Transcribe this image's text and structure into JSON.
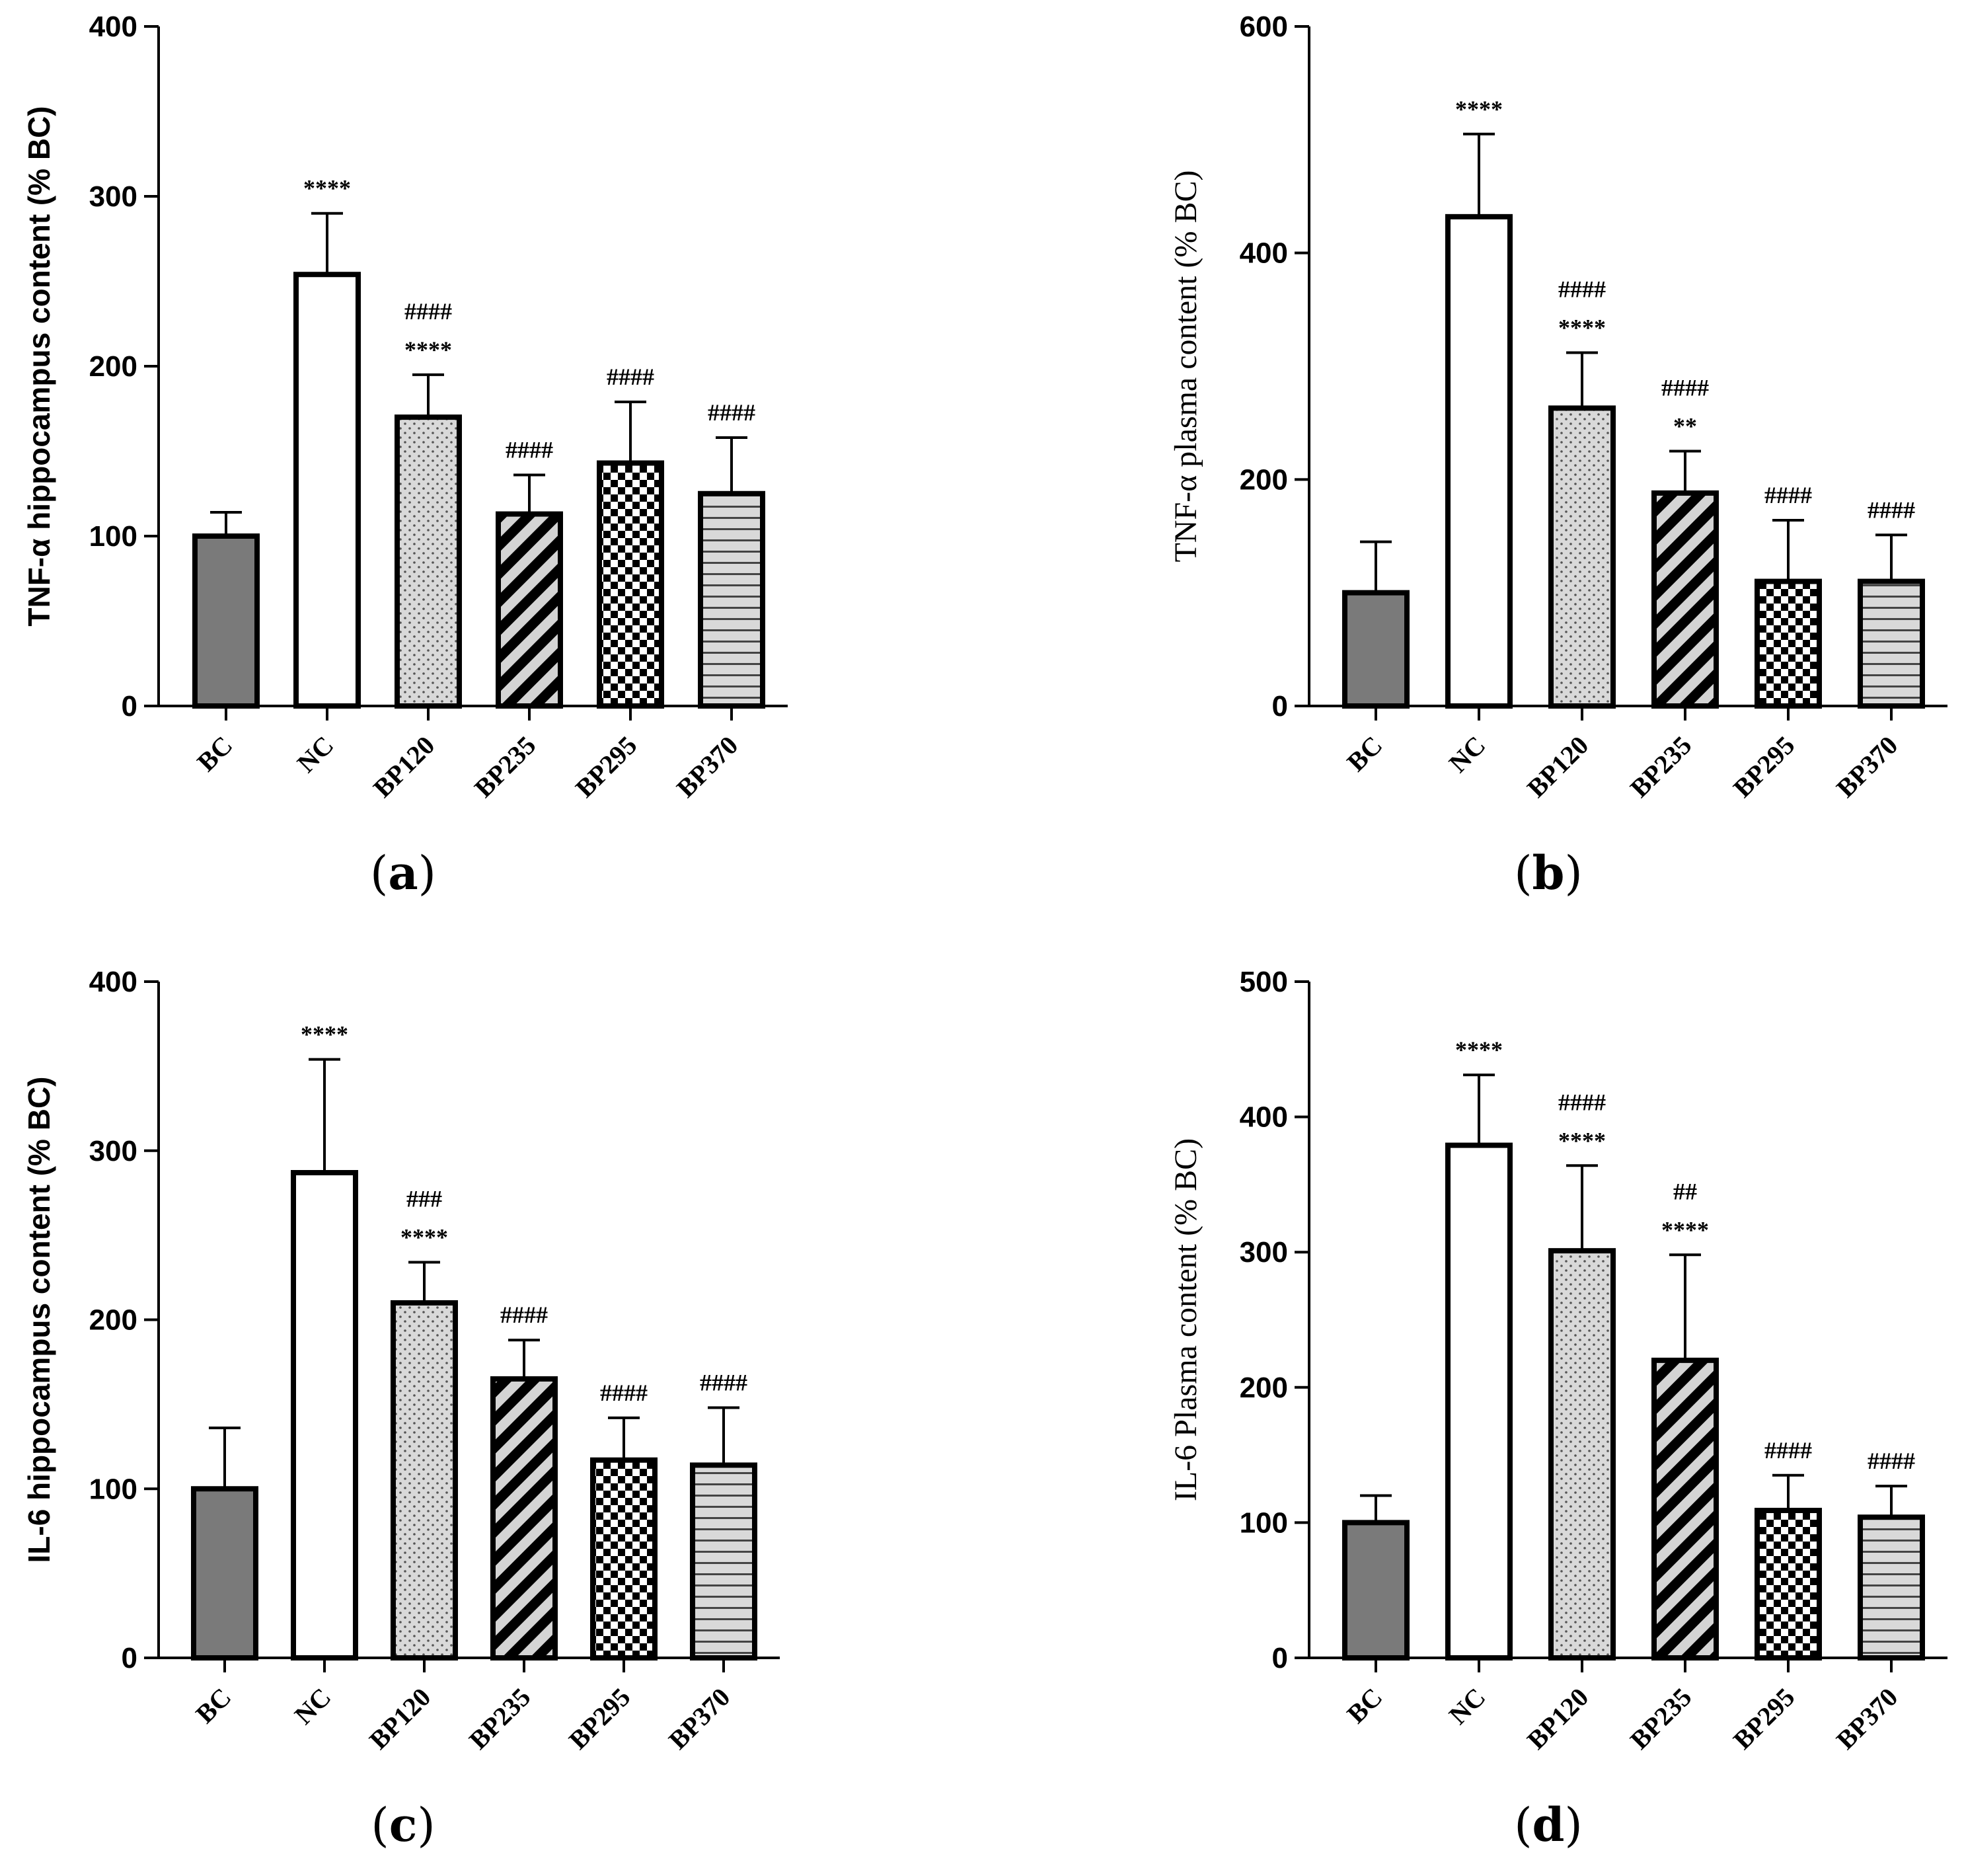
{
  "figure": {
    "panels": [
      {
        "id": "a",
        "label_open": "(",
        "label_letter": "a",
        "label_close": ")",
        "ylabel_font": "sans",
        "chart_key": 0
      },
      {
        "id": "b",
        "label_open": "(",
        "label_letter": "b",
        "label_close": ")",
        "ylabel_font": "serif",
        "chart_key": 1
      },
      {
        "id": "c",
        "label_open": "(",
        "label_letter": "c",
        "label_close": ")",
        "ylabel_font": "sans",
        "chart_key": 2
      },
      {
        "id": "d",
        "label_open": "(",
        "label_letter": "d",
        "label_close": ")",
        "ylabel_font": "serif",
        "chart_key": 3
      }
    ]
  },
  "chart_data": [
    {
      "type": "bar",
      "title": "",
      "xlabel": "",
      "ylabel": "TNF-α  hippocampus content (% BC)",
      "ylim": [
        0,
        400
      ],
      "yticks": [
        0,
        100,
        200,
        300,
        400
      ],
      "categories": [
        "BC",
        "NC",
        "BP120",
        "BP235",
        "BP295",
        "BP370"
      ],
      "values": [
        100,
        254,
        170,
        113,
        143,
        125
      ],
      "errors": [
        14,
        36,
        25,
        23,
        36,
        33
      ],
      "patterns": [
        "solid-gray",
        "white",
        "dots",
        "diagonal",
        "checker",
        "horizontal"
      ],
      "annotations": [
        [],
        [
          "****"
        ],
        [
          "####",
          "****"
        ],
        [
          "####"
        ],
        [
          "####"
        ],
        [
          "####"
        ]
      ]
    },
    {
      "type": "bar",
      "title": "",
      "xlabel": "",
      "ylabel": "TNF-α plasma content (% BC)",
      "ylim": [
        0,
        600
      ],
      "yticks": [
        0,
        200,
        400,
        600
      ],
      "categories": [
        "BC",
        "NC",
        "BP120",
        "BP235",
        "BP295",
        "BP370"
      ],
      "values": [
        100,
        432,
        263,
        188,
        110,
        110
      ],
      "errors": [
        45,
        73,
        49,
        37,
        54,
        41
      ],
      "patterns": [
        "solid-gray",
        "white",
        "dots",
        "diagonal",
        "checker",
        "horizontal"
      ],
      "annotations": [
        [],
        [
          "****"
        ],
        [
          "####",
          "****"
        ],
        [
          "####",
          "**"
        ],
        [
          "####"
        ],
        [
          "####"
        ]
      ]
    },
    {
      "type": "bar",
      "title": "",
      "xlabel": "",
      "ylabel": "IL-6 hippocampus content (%  BC)",
      "ylim": [
        0,
        400
      ],
      "yticks": [
        0,
        100,
        200,
        300,
        400
      ],
      "categories": [
        "BC",
        "NC",
        "BP120",
        "BP235",
        "BP295",
        "BP370"
      ],
      "values": [
        100,
        287,
        210,
        165,
        117,
        114
      ],
      "errors": [
        36,
        67,
        24,
        23,
        25,
        34
      ],
      "patterns": [
        "solid-gray",
        "white",
        "dots",
        "diagonal",
        "checker",
        "horizontal"
      ],
      "annotations": [
        [],
        [
          "****"
        ],
        [
          "###",
          "****"
        ],
        [
          "####"
        ],
        [
          "####"
        ],
        [
          "####"
        ]
      ]
    },
    {
      "type": "bar",
      "title": "",
      "xlabel": "",
      "ylabel": "IL-6 Plasma content (% BC)",
      "ylim": [
        0,
        500
      ],
      "yticks": [
        0,
        100,
        200,
        300,
        400,
        500
      ],
      "categories": [
        "BC",
        "NC",
        "BP120",
        "BP235",
        "BP295",
        "BP370"
      ],
      "values": [
        100,
        379,
        301,
        220,
        109,
        104
      ],
      "errors": [
        20,
        52,
        63,
        78,
        26,
        23
      ],
      "patterns": [
        "solid-gray",
        "white",
        "dots",
        "diagonal",
        "checker",
        "horizontal"
      ],
      "annotations": [
        [],
        [
          "****"
        ],
        [
          "####",
          "****"
        ],
        [
          "##",
          "****"
        ],
        [
          "####"
        ],
        [
          "####"
        ]
      ]
    }
  ]
}
